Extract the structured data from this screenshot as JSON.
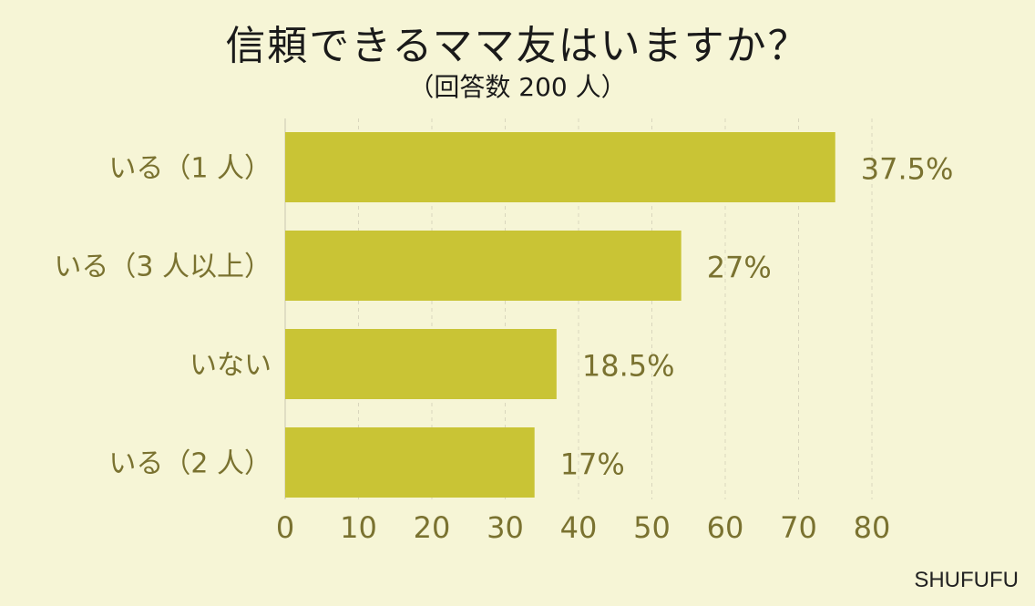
{
  "header": {
    "title": "信頼できるママ友はいますか？",
    "subtitle": "（回答数 200 人）"
  },
  "brand": "SHUFUFU",
  "colors": {
    "background": "#f6f5d6",
    "bar": "#c9c435",
    "label_text": "#7a7230",
    "grid": "#d9d6bd"
  },
  "chart_data": {
    "type": "bar",
    "orientation": "horizontal",
    "categories": [
      "いる（1 人）",
      "いる（3 人以上）",
      "いない",
      "いる（2 人）"
    ],
    "values": [
      75,
      54,
      37,
      34
    ],
    "data_labels": [
      "37.5%",
      "27%",
      "18.5%",
      "17%"
    ],
    "xlim": [
      0,
      80
    ],
    "xticks": [
      0,
      10,
      20,
      30,
      40,
      50,
      60,
      70,
      80
    ],
    "grid": true
  }
}
